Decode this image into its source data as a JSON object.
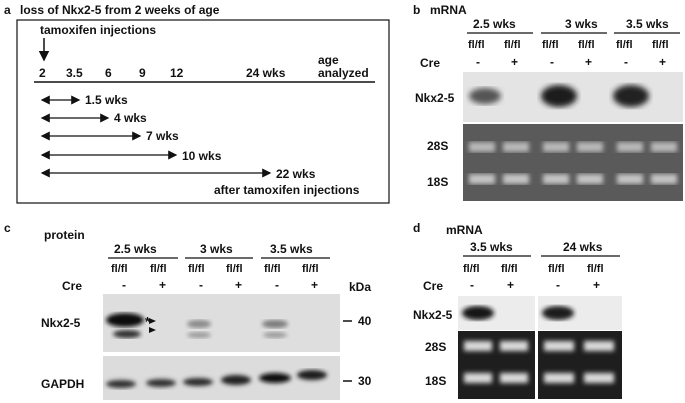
{
  "panel_a": {
    "letter": "a",
    "title": "loss of Nkx2-5 from 2 weeks of age",
    "injections_label": "tamoxifen injections",
    "age_label_line1": "age",
    "age_label_line2": "analyzed",
    "ticks": [
      "2",
      "3.5",
      "6",
      "9",
      "12",
      "24 wks"
    ],
    "intervals": [
      "1.5 wks",
      "4 wks",
      "7 wks",
      "10 wks",
      "22 wks"
    ],
    "footer": "after tamoxifen injections"
  },
  "panel_b": {
    "letter": "b",
    "header": "mRNA",
    "groups": [
      "2.5 wks",
      "3 wks",
      "3.5 wks"
    ],
    "genotype": "fl/fl",
    "cre_label": "Cre",
    "cre_minus": "-",
    "cre_plus": "+",
    "rows": [
      "Nkx2-5",
      "28S",
      "18S"
    ]
  },
  "panel_c": {
    "letter": "c",
    "header": "protein",
    "groups": [
      "2.5 wks",
      "3 wks",
      "3.5 wks"
    ],
    "genotype": "fl/fl",
    "cre_label": "Cre",
    "cre_minus": "-",
    "cre_plus": "+",
    "kda": "kDa",
    "mw": [
      "40",
      "30"
    ],
    "rows": [
      "Nkx2-5",
      "GAPDH"
    ],
    "star": "*"
  },
  "panel_d": {
    "letter": "d",
    "header": "mRNA",
    "groups": [
      "3.5 wks",
      "24 wks"
    ],
    "genotype": "fl/fl",
    "cre_label": "Cre",
    "cre_minus": "-",
    "cre_plus": "+",
    "rows": [
      "Nkx2-5",
      "28S",
      "18S"
    ]
  }
}
